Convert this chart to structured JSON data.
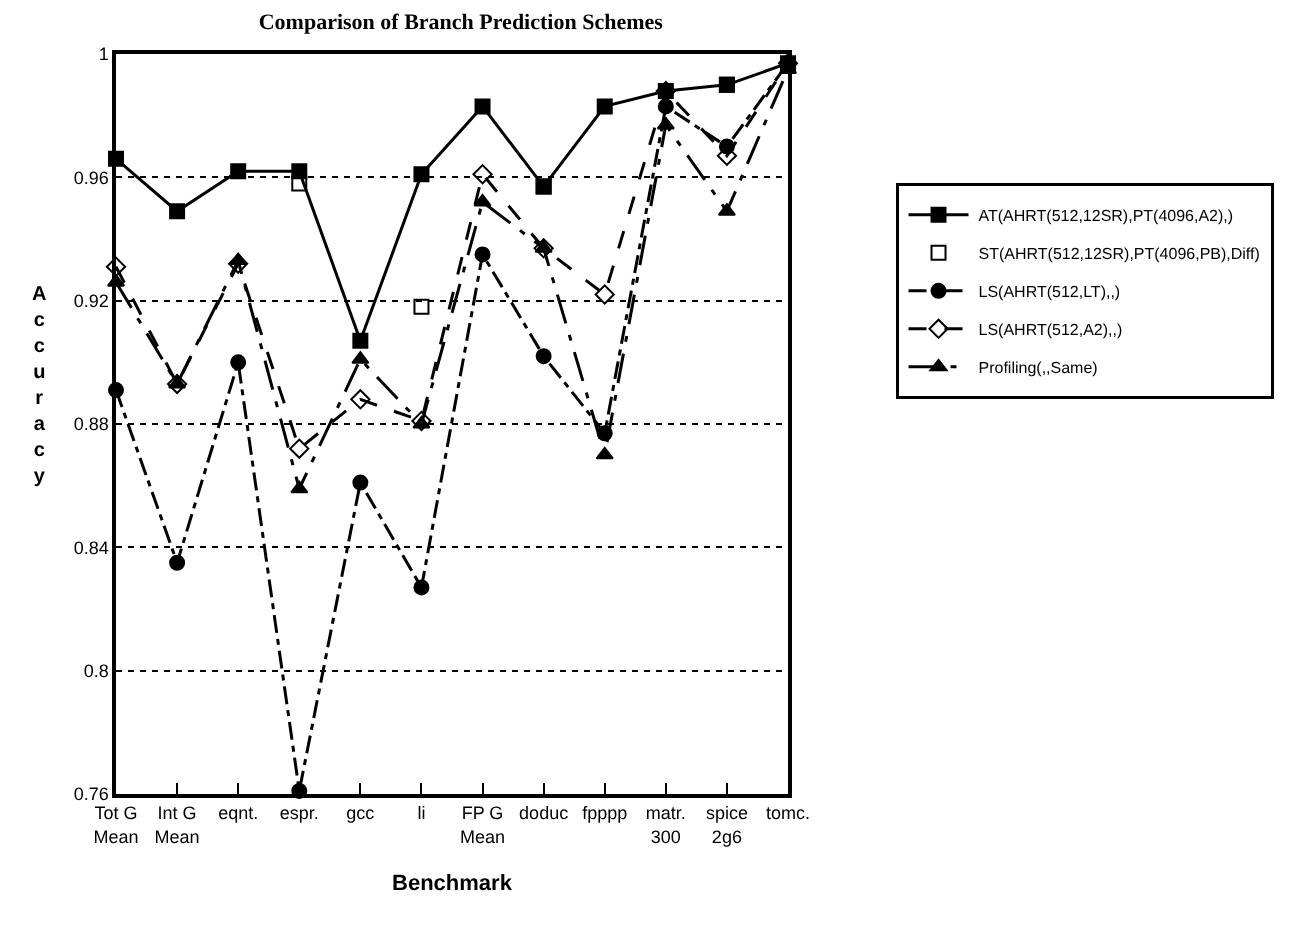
{
  "chart_data": {
    "type": "line",
    "title": "Comparison of Branch Prediction Schemes",
    "xlabel": "Benchmark",
    "ylabel": "Accuracy",
    "categories": [
      "Tot G\nMean",
      "Int G\nMean",
      "eqnt.",
      "espr.",
      "gcc",
      "li",
      "FP G\nMean",
      "doduc",
      "fpppp",
      "matr.\n300",
      "spice\n2g6",
      "tomc."
    ],
    "series": [
      {
        "name": "AT(AHRT(512,12SR),PT(4096,A2),)",
        "color": "#000000",
        "marker": "square",
        "line_style": "solid",
        "values": [
          0.966,
          0.949,
          0.962,
          0.962,
          0.907,
          0.961,
          0.983,
          0.957,
          0.983,
          0.988,
          0.99,
          0.997
        ]
      },
      {
        "name": "ST(AHRT(512,12SR),PT(4096,PB),Diff)",
        "color": "#000000",
        "type": "scatter",
        "marker": "square-open",
        "values": [
          null,
          null,
          null,
          0.958,
          null,
          0.918,
          null,
          0.957,
          null,
          null,
          0.99,
          null
        ]
      },
      {
        "name": "LS(AHRT(512,LT),,)",
        "color": "#000000",
        "marker": "circle",
        "line_style": "dashdot",
        "values": [
          0.891,
          0.835,
          0.9,
          0.761,
          0.861,
          0.827,
          0.935,
          0.902,
          0.877,
          0.983,
          0.97,
          0.997
        ]
      },
      {
        "name": "LS(AHRT(512,A2),,)",
        "color": "#000000",
        "marker": "diamond-open",
        "line_style": "dashed",
        "values": [
          0.931,
          0.893,
          0.932,
          0.872,
          0.888,
          0.881,
          0.961,
          0.937,
          0.922,
          0.988,
          0.967,
          0.997
        ]
      },
      {
        "name": "Profiling(,,Same)",
        "color": "#000000",
        "marker": "triangle",
        "line_style": "longdashdot",
        "values": [
          0.926,
          0.893,
          0.933,
          0.859,
          0.901,
          0.88,
          0.952,
          0.937,
          0.87,
          0.977,
          0.949,
          0.995
        ]
      }
    ],
    "ylim": [
      0.76,
      1
    ],
    "yticks": [
      0.76,
      0.8,
      0.84,
      0.88,
      0.92,
      0.96,
      1
    ],
    "grid": "y",
    "legend": "right"
  }
}
